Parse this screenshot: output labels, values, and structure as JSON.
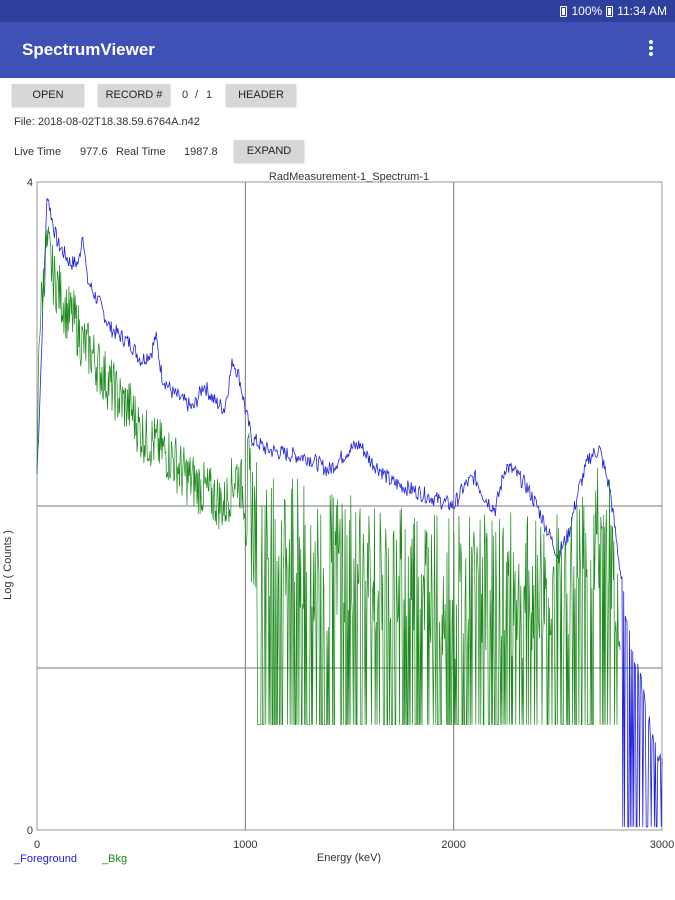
{
  "status_bar": {
    "battery": "100%",
    "time": "11:34 AM"
  },
  "app_bar": {
    "title": "SpectrumViewer",
    "menu_icon": "overflow-menu-icon"
  },
  "toolbar": {
    "open_label": "OPEN",
    "record_label": "RECORD #",
    "record_index": "0",
    "record_sep": "/",
    "record_total": "1",
    "header_label": "HEADER"
  },
  "file": {
    "text": "File: 2018-08-02T18.38.59.6764A.n42"
  },
  "timing": {
    "live_label": "Live Time",
    "live_value": "977.6",
    "real_label": "Real Time",
    "real_value": "1987.8",
    "expand_label": "EXPAND"
  },
  "chart_data": {
    "type": "line",
    "title": "RadMeasurement-1_Spectrum-1",
    "xlabel": "Energy (keV)",
    "ylabel": "Log ( Counts )",
    "xlim": [
      0,
      3000
    ],
    "ylim": [
      0,
      4
    ],
    "x_ticks": [
      "0",
      "1000",
      "2000",
      "3000"
    ],
    "y_ticks": [
      "0",
      "4"
    ],
    "grid": true,
    "colors": {
      "Foreground": "#2222dd",
      "Bkg": "#1a8a1a"
    },
    "legend": [
      "_Foreground",
      "_Bkg"
    ],
    "series": [
      {
        "name": "_Foreground",
        "x": [
          0,
          15,
          30,
          50,
          60,
          80,
          100,
          130,
          160,
          200,
          220,
          240,
          270,
          300,
          350,
          400,
          450,
          500,
          550,
          570,
          600,
          650,
          700,
          750,
          800,
          850,
          900,
          940,
          970,
          1000,
          1030,
          1100,
          1200,
          1300,
          1400,
          1500,
          1550,
          1600,
          1650,
          1700,
          1800,
          1900,
          2000,
          2050,
          2100,
          2150,
          2200,
          2250,
          2300,
          2350,
          2400,
          2450,
          2500,
          2550,
          2600,
          2650,
          2700,
          2750,
          2790,
          2820,
          2860,
          2900,
          2950,
          3000
        ],
        "y": [
          2.2,
          2.7,
          3.3,
          3.95,
          3.85,
          3.72,
          3.62,
          3.56,
          3.5,
          3.5,
          3.7,
          3.4,
          3.32,
          3.25,
          3.1,
          3.05,
          3.0,
          2.9,
          2.95,
          3.05,
          2.8,
          2.7,
          2.65,
          2.6,
          2.75,
          2.65,
          2.6,
          2.9,
          2.8,
          2.6,
          2.42,
          2.35,
          2.32,
          2.3,
          2.22,
          2.35,
          2.38,
          2.28,
          2.22,
          2.15,
          2.1,
          2.05,
          2.0,
          2.12,
          2.18,
          2.05,
          1.98,
          2.25,
          2.2,
          2.12,
          2.0,
          1.85,
          1.7,
          1.82,
          2.1,
          2.3,
          2.35,
          2.1,
          1.7,
          1.4,
          1.1,
          0.9,
          0.6,
          0.4
        ]
      },
      {
        "name": "_Bkg",
        "x": [
          0,
          10,
          25,
          45,
          60,
          80,
          100,
          140,
          180,
          220,
          260,
          300,
          350,
          400,
          450,
          500,
          550,
          600,
          650,
          700,
          750,
          800,
          850,
          900,
          940,
          960,
          1000,
          1020,
          1050,
          1100,
          1200,
          1300,
          1400,
          1500,
          1600,
          1700,
          1800,
          1900,
          2000,
          2100,
          2200,
          2300,
          2400,
          2500,
          2600,
          2650,
          2700,
          2750,
          2800
        ],
        "y": [
          2.1,
          3.1,
          3.3,
          3.6,
          3.55,
          3.4,
          3.35,
          3.2,
          3.15,
          3.0,
          2.95,
          2.85,
          2.75,
          2.65,
          2.6,
          2.45,
          2.4,
          2.35,
          2.3,
          2.2,
          2.15,
          2.1,
          2.05,
          2.0,
          2.15,
          2.2,
          2.05,
          2.0,
          1.85,
          1.8,
          1.75,
          1.7,
          1.65,
          1.7,
          1.6,
          1.55,
          1.6,
          1.55,
          1.5,
          1.5,
          1.55,
          1.5,
          1.5,
          1.55,
          1.6,
          1.75,
          1.85,
          1.8,
          1.4
        ]
      }
    ]
  }
}
